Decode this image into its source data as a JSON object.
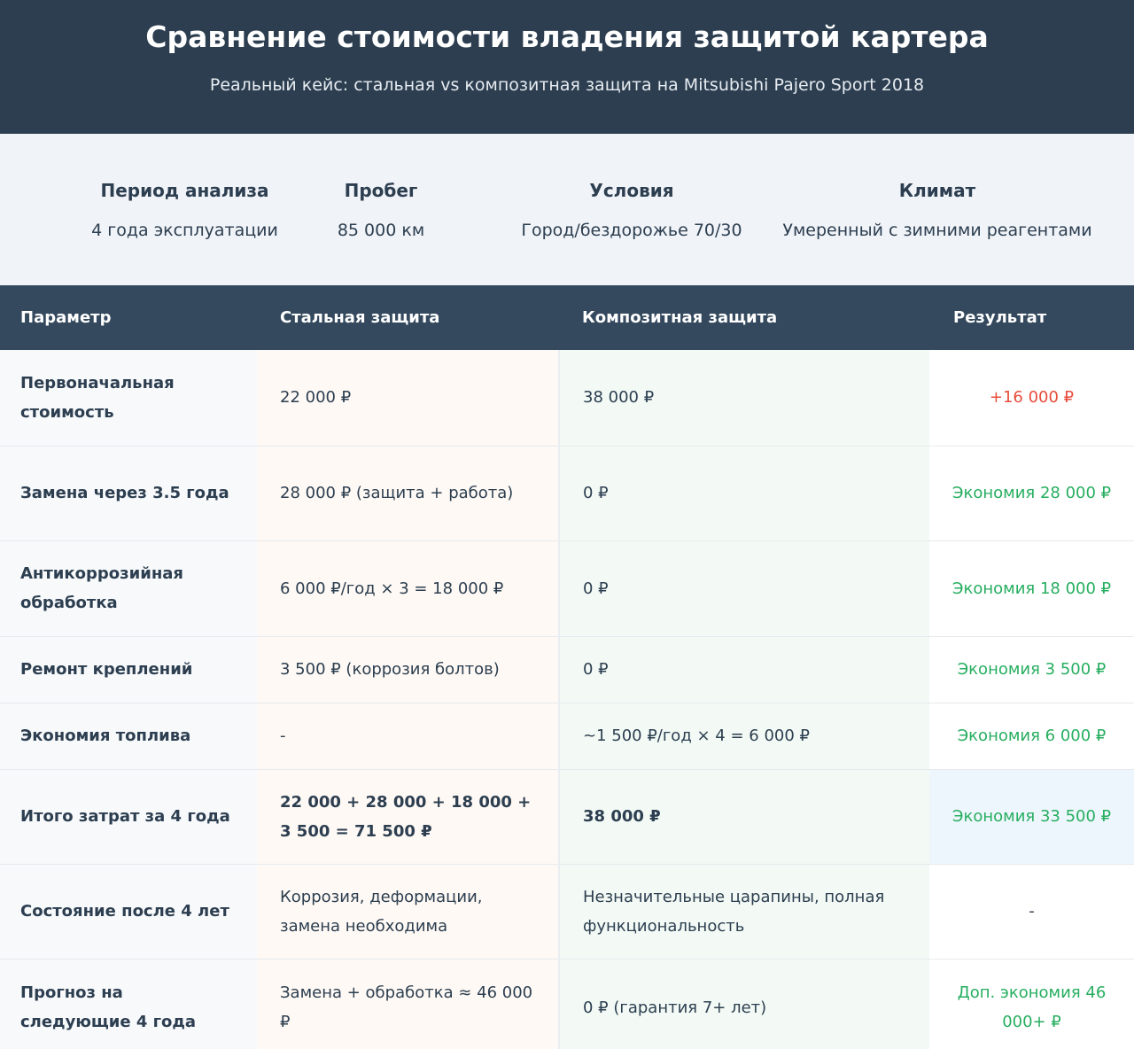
{
  "header": {
    "title": "Сравнение стоимости владения защитой картера",
    "subtitle": "Реальный кейс: стальная vs композитная защита на Mitsubishi Pajero Sport 2018"
  },
  "info": [
    {
      "label": "Период анализа",
      "value": "4 года эксплуатации"
    },
    {
      "label": "Пробег",
      "value": "85 000 км"
    },
    {
      "label": "Условия",
      "value": "Город/бездорожье 70/30"
    },
    {
      "label": "Климат",
      "value": "Умеренный с зимними реагентами"
    }
  ],
  "table": {
    "columns": [
      "Параметр",
      "Стальная защита",
      "Композитная защита",
      "Результат"
    ],
    "rows": [
      {
        "param": "Первоначальная стоимость",
        "steel": "22 000 ₽",
        "composite": "38 000 ₽",
        "result": "+16 000 ₽",
        "result_type": "negative"
      },
      {
        "param": "Замена через 3.5 года",
        "steel": "28 000 ₽ (защита + работа)",
        "composite": "0 ₽",
        "result": "Экономия 28 000 ₽",
        "result_type": "positive"
      },
      {
        "param": "Антикоррозийная обработка",
        "steel": "6 000 ₽/год × 3 = 18 000 ₽",
        "composite": "0 ₽",
        "result": "Экономия 18 000 ₽",
        "result_type": "positive"
      },
      {
        "param": "Ремонт креплений",
        "steel": "3 500 ₽ (коррозия болтов)",
        "composite": "0 ₽",
        "result": "Экономия 3 500 ₽",
        "result_type": "positive"
      },
      {
        "param": "Экономия топлива",
        "steel": "-",
        "composite": "~1 500 ₽/год × 4 = 6 000 ₽",
        "result": "Экономия 6 000 ₽",
        "result_type": "positive"
      },
      {
        "param": "Итого затрат за 4 года",
        "steel": "22 000 + 28 000 + 18 000 + 3 500 = 71 500 ₽",
        "composite": "38 000 ₽",
        "result": "Экономия 33 500 ₽",
        "result_type": "positive",
        "highlight": true
      },
      {
        "param": "Состояние после 4 лет",
        "steel": "Коррозия, деформации, замена необходима",
        "composite": "Незначительные царапины, полная функциональность",
        "result": "-",
        "result_type": "neutral"
      },
      {
        "param": "Прогноз на следующие 4 года",
        "steel": "Замена + обработка ≈ 46 000 ₽",
        "composite": "0 ₽ (гарантия 7+ лет)",
        "result": "Доп. экономия 46 000+ ₽",
        "result_type": "positive"
      }
    ]
  },
  "colors": {
    "header_bg": "#2c3e50",
    "table_header_bg": "#34495e",
    "negative": "#e74c3c",
    "positive": "#27ae60",
    "info_bg": "#f0f3f7"
  }
}
